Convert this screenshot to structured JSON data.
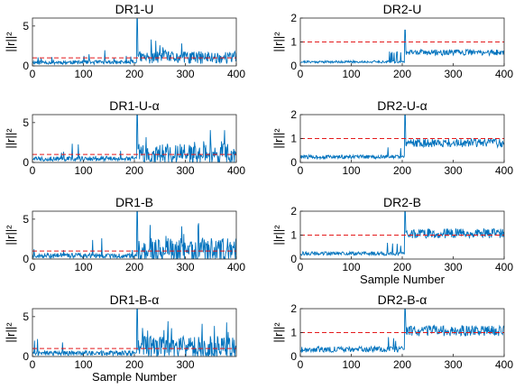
{
  "chart_data": [
    {
      "type": "line",
      "title": "DR1-U",
      "xlabel": "",
      "ylabel": "||r||²",
      "xlim": [
        0,
        400
      ],
      "ylim": [
        0,
        6
      ],
      "yticks": [
        0,
        5
      ],
      "xticks": [
        0,
        100,
        200,
        300,
        400
      ],
      "threshold": 1.0,
      "series": [
        {
          "color": "#0072bd",
          "baseline": 0.35,
          "noise_pre": 0.25,
          "noise_post": 0.8,
          "spike_pre": 1.6,
          "spike_at_205": 5.9,
          "seed": 11
        }
      ]
    },
    {
      "type": "line",
      "title": "DR2-U",
      "xlabel": "",
      "ylabel": "||r||²",
      "xlim": [
        0,
        400
      ],
      "ylim": [
        0,
        2
      ],
      "yticks": [
        0,
        1,
        2
      ],
      "xticks": [
        0,
        100,
        200,
        300,
        400
      ],
      "threshold": 1.0,
      "series": [
        {
          "color": "#0072bd",
          "baseline": 0.15,
          "noise_pre": 0.05,
          "noise_post": 0.12,
          "post_level": 0.55,
          "spike_at_205": 1.5,
          "seed": 21
        }
      ]
    },
    {
      "type": "line",
      "title": "DR1-U-α",
      "xlabel": "",
      "ylabel": "||r||²",
      "xlim": [
        0,
        400
      ],
      "ylim": [
        0,
        6
      ],
      "yticks": [
        0,
        5
      ],
      "xticks": [
        0,
        100,
        200,
        300,
        400
      ],
      "threshold": 1.0,
      "series": [
        {
          "color": "#0072bd",
          "baseline": 0.35,
          "noise_pre": 0.3,
          "noise_post": 1.3,
          "spike_pre": 2.4,
          "spike_at_205": 6.0,
          "seed": 33
        }
      ]
    },
    {
      "type": "line",
      "title": "DR2-U-α",
      "xlabel": "",
      "ylabel": "||r||²",
      "xlim": [
        0,
        400
      ],
      "ylim": [
        0,
        2
      ],
      "yticks": [
        0,
        1,
        2
      ],
      "xticks": [
        0,
        100,
        200,
        300,
        400
      ],
      "threshold": 1.0,
      "series": [
        {
          "color": "#0072bd",
          "baseline": 0.2,
          "noise_pre": 0.08,
          "noise_post": 0.18,
          "post_level": 0.8,
          "spike_at_205": 2.0,
          "seed": 44
        }
      ]
    },
    {
      "type": "line",
      "title": "DR1-B",
      "xlabel": "",
      "ylabel": "||r||²",
      "xlim": [
        0,
        400
      ],
      "ylim": [
        0,
        6
      ],
      "yticks": [
        0,
        5
      ],
      "xticks": [
        0,
        100,
        200,
        300,
        400
      ],
      "threshold": 1.0,
      "series": [
        {
          "color": "#0072bd",
          "baseline": 0.3,
          "noise_pre": 0.3,
          "noise_post": 1.6,
          "spike_pre": 2.2,
          "spike_at_205": 6.0,
          "seed": 55
        }
      ]
    },
    {
      "type": "line",
      "title": "DR2-B",
      "xlabel": "Sample Number",
      "ylabel": "||r||²",
      "xlim": [
        0,
        400
      ],
      "ylim": [
        0,
        2
      ],
      "yticks": [
        0,
        1,
        2
      ],
      "xticks": [
        0,
        100,
        200,
        300,
        400
      ],
      "threshold": 1.0,
      "series": [
        {
          "color": "#0072bd",
          "baseline": 0.2,
          "noise_pre": 0.08,
          "noise_post": 0.2,
          "post_level": 1.05,
          "spike_at_205": 2.0,
          "seed": 66
        }
      ]
    },
    {
      "type": "line",
      "title": "DR1-B-α",
      "xlabel": "Sample Number",
      "ylabel": "||r||²",
      "xlim": [
        0,
        400
      ],
      "ylim": [
        0,
        6
      ],
      "yticks": [
        0,
        5
      ],
      "xticks": [
        0,
        100,
        200,
        300
      ],
      "threshold": 1.0,
      "series": [
        {
          "color": "#0072bd",
          "baseline": 0.3,
          "noise_pre": 0.3,
          "noise_post": 1.5,
          "spike_pre": 2.0,
          "spike_at_205": 6.0,
          "seed": 77
        }
      ]
    },
    {
      "type": "line",
      "title": "DR2-B-α",
      "xlabel": "",
      "ylabel": "||r||²",
      "xlim": [
        0,
        400
      ],
      "ylim": [
        0,
        2
      ],
      "yticks": [
        0,
        1,
        2
      ],
      "xticks": [
        0,
        100,
        200,
        300,
        400
      ],
      "threshold": 1.0,
      "series": [
        {
          "color": "#0072bd",
          "baseline": 0.25,
          "noise_pre": 0.12,
          "noise_post": 0.22,
          "post_level": 1.05,
          "spike_at_205": 2.0,
          "seed": 88
        }
      ]
    }
  ],
  "colors": {
    "line": "#0072bd",
    "threshold": "#e41a1c",
    "axes": "#262626"
  }
}
